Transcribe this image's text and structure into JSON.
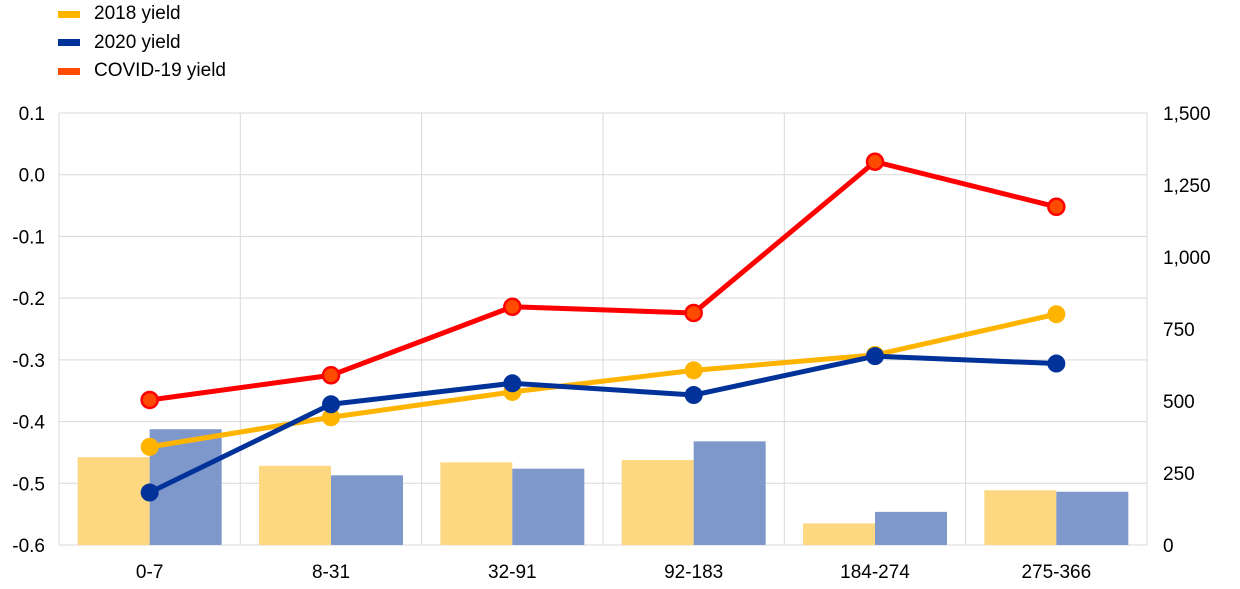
{
  "chart_data": {
    "type": "line",
    "categories": [
      "0-7",
      "8-31",
      "32-91",
      "92-183",
      "184-274",
      "275-366"
    ],
    "series": [
      {
        "name": "2018 yield",
        "color": "#FFB400",
        "axis": "left",
        "values": [
          -0.441,
          -0.393,
          -0.352,
          -0.317,
          -0.292,
          -0.226
        ]
      },
      {
        "name": "2020 yield",
        "color": "#003299",
        "axis": "left",
        "values": [
          -0.515,
          -0.372,
          -0.338,
          -0.357,
          -0.294,
          -0.306
        ]
      },
      {
        "name": "COVID-19 yield",
        "color": "#FF0000",
        "marker_fill": "#FF4B00",
        "axis": "left",
        "values": [
          -0.365,
          -0.325,
          -0.214,
          -0.224,
          0.021,
          -0.052
        ]
      }
    ],
    "bars": [
      {
        "series_ref": "2018 yield",
        "color": "#FDD880",
        "axis": "right",
        "values": [
          305,
          275,
          287,
          295,
          75,
          190
        ]
      },
      {
        "series_ref": "2020 yield",
        "color": "#7F98CC",
        "axis": "right",
        "values": [
          402,
          242,
          265,
          360,
          115,
          185
        ]
      }
    ],
    "left_axis": {
      "ylim": [
        -0.6,
        0.1
      ],
      "ticks": [
        "0.1",
        "0.0",
        "-0.1",
        "-0.2",
        "-0.3",
        "-0.4",
        "-0.5",
        "-0.6"
      ]
    },
    "right_axis": {
      "ylim": [
        0,
        1500
      ],
      "ticks": [
        "1,500",
        "1,250",
        "1,000",
        "750",
        "500",
        "250",
        "0"
      ]
    },
    "legend_position": "top-left",
    "grid": true
  }
}
